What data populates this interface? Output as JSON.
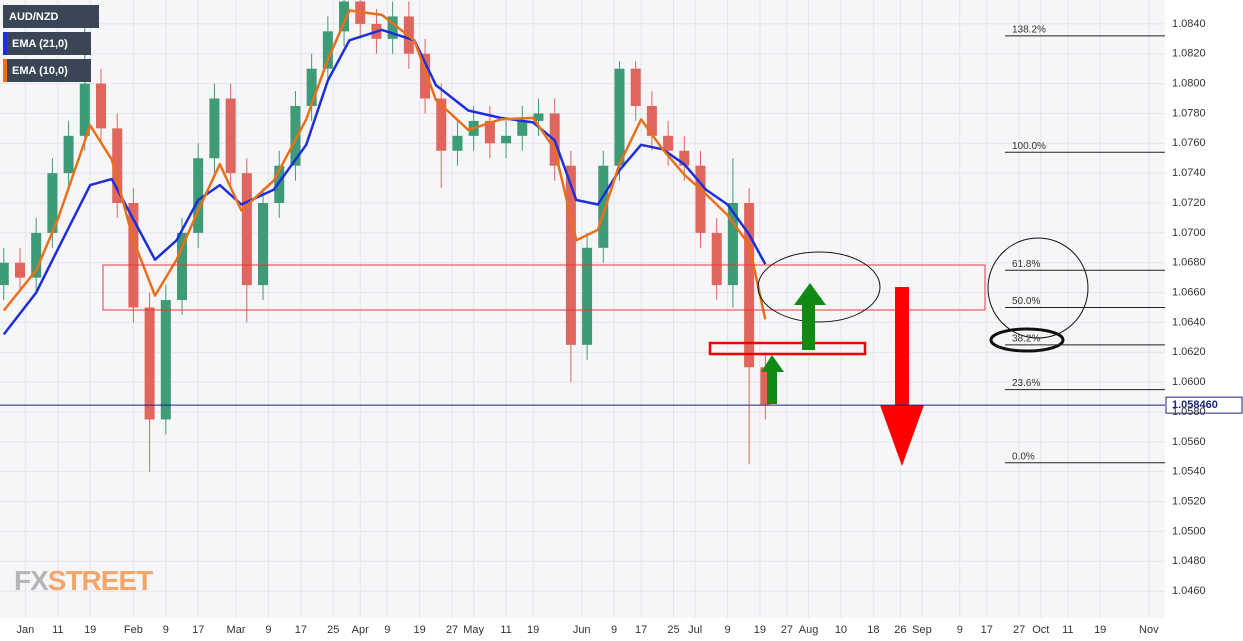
{
  "chart_data": {
    "type": "candlestick",
    "symbol": "AUD/NZD",
    "up_color": "#3d9b75",
    "down_color": "#e0655c",
    "x": [
      0,
      3,
      6,
      9,
      12,
      15,
      18,
      21,
      24,
      27,
      30,
      33,
      36,
      39,
      42,
      45,
      48,
      51,
      54,
      57,
      60,
      63,
      66,
      69,
      72,
      75,
      78,
      81,
      84,
      87,
      90,
      93,
      96,
      99,
      102,
      105,
      108,
      111,
      114,
      117,
      120,
      123,
      126,
      129,
      132,
      135,
      138,
      141
    ],
    "open": [
      1.0665,
      1.068,
      1.067,
      1.07,
      1.074,
      1.0765,
      1.08,
      1.077,
      1.072,
      1.065,
      1.0575,
      1.0655,
      1.07,
      1.075,
      1.079,
      1.074,
      1.0665,
      1.072,
      1.0745,
      1.0785,
      1.081,
      1.0835,
      1.0855,
      1.084,
      1.083,
      1.0845,
      1.082,
      1.079,
      1.0755,
      1.0765,
      1.0775,
      1.076,
      1.0765,
      1.0775,
      1.078,
      1.0745,
      1.0625,
      1.069,
      1.0745,
      1.081,
      1.0785,
      1.0765,
      1.0755,
      1.0745,
      1.07,
      1.0665,
      1.072,
      1.061
    ],
    "high": [
      1.069,
      1.069,
      1.071,
      1.075,
      1.0775,
      1.0845,
      1.081,
      1.078,
      1.073,
      1.066,
      1.0665,
      1.071,
      1.076,
      1.08,
      1.08,
      1.075,
      1.073,
      1.0755,
      1.0795,
      1.082,
      1.0845,
      1.086,
      1.086,
      1.085,
      1.0855,
      1.0855,
      1.083,
      1.08,
      1.0775,
      1.0785,
      1.0785,
      1.0775,
      1.0785,
      1.079,
      1.079,
      1.0755,
      1.07,
      1.0755,
      1.0815,
      1.0815,
      1.0795,
      1.0775,
      1.0765,
      1.0755,
      1.071,
      1.075,
      1.073,
      1.062
    ],
    "low": [
      1.0655,
      1.066,
      1.066,
      1.069,
      1.073,
      1.0755,
      1.076,
      1.071,
      1.064,
      1.054,
      1.0565,
      1.0645,
      1.069,
      1.074,
      1.073,
      1.064,
      1.0655,
      1.071,
      1.0735,
      1.0775,
      1.08,
      1.0825,
      1.083,
      1.082,
      1.082,
      1.081,
      1.078,
      1.073,
      1.0745,
      1.0755,
      1.075,
      1.075,
      1.0755,
      1.0765,
      1.0735,
      1.06,
      1.0615,
      1.068,
      1.0735,
      1.0775,
      1.0755,
      1.0745,
      1.0735,
      1.069,
      1.0655,
      1.065,
      1.0545,
      1.0575
    ],
    "close": [
      1.068,
      1.067,
      1.07,
      1.074,
      1.0765,
      1.08,
      1.077,
      1.072,
      1.065,
      1.0575,
      1.0655,
      1.07,
      1.075,
      1.079,
      1.074,
      1.0665,
      1.072,
      1.0745,
      1.0785,
      1.081,
      1.0835,
      1.0855,
      1.084,
      1.083,
      1.0845,
      1.082,
      1.079,
      1.0755,
      1.0765,
      1.0775,
      1.076,
      1.0765,
      1.0775,
      1.078,
      1.0745,
      1.0625,
      1.069,
      1.0745,
      1.081,
      1.0785,
      1.0765,
      1.0755,
      1.0745,
      1.07,
      1.0665,
      1.072,
      1.061,
      1.0585
    ],
    "lines": [
      {
        "name": "EMA (21,0)",
        "color": "#1d2fd8",
        "x": [
          0,
          6,
          10,
          16,
          20,
          24,
          28,
          32,
          36,
          40,
          44,
          50,
          56,
          60,
          64,
          70,
          76,
          80,
          86,
          92,
          98,
          102,
          106,
          110,
          114,
          118,
          122,
          126,
          130,
          134,
          138,
          141
        ],
        "values": [
          1.0632,
          1.066,
          1.0689,
          1.0732,
          1.0736,
          1.0709,
          1.0682,
          1.0695,
          1.0722,
          1.0732,
          1.0719,
          1.0729,
          1.0759,
          1.0802,
          1.0829,
          1.0836,
          1.0829,
          1.0799,
          1.0782,
          1.0777,
          1.0774,
          1.0762,
          1.0722,
          1.0719,
          1.0742,
          1.0759,
          1.0756,
          1.0746,
          1.0729,
          1.0719,
          1.0699,
          1.0679
        ]
      },
      {
        "name": "EMA (10,0)",
        "color": "#e8701a",
        "x": [
          0,
          6,
          10,
          16,
          20,
          24,
          28,
          32,
          36,
          40,
          44,
          50,
          56,
          60,
          64,
          70,
          76,
          80,
          86,
          92,
          98,
          102,
          106,
          110,
          114,
          118,
          122,
          126,
          130,
          134,
          138,
          141
        ],
        "values": [
          1.0648,
          1.0675,
          1.0709,
          1.0772,
          1.0749,
          1.0695,
          1.0658,
          1.0682,
          1.0715,
          1.0746,
          1.0715,
          1.0735,
          1.0776,
          1.0816,
          1.0849,
          1.0846,
          1.0829,
          1.0789,
          1.0769,
          1.0776,
          1.0777,
          1.0756,
          1.0695,
          1.0702,
          1.0746,
          1.0776,
          1.0756,
          1.0739,
          1.0726,
          1.0712,
          1.0692,
          1.0642
        ]
      }
    ],
    "xlim": [
      -0.7,
      215
    ],
    "xticks": [
      {
        "value": 4,
        "label": "Jan"
      },
      {
        "value": 10,
        "label": "11"
      },
      {
        "value": 16,
        "label": "19"
      },
      {
        "value": 24,
        "label": "Feb"
      },
      {
        "value": 30,
        "label": "9"
      },
      {
        "value": 36,
        "label": "17"
      },
      {
        "value": 43,
        "label": "Mar"
      },
      {
        "value": 49,
        "label": "9"
      },
      {
        "value": 55,
        "label": "17"
      },
      {
        "value": 61,
        "label": "25"
      },
      {
        "value": 66,
        "label": "Apr"
      },
      {
        "value": 71,
        "label": "9"
      },
      {
        "value": 77,
        "label": "19"
      },
      {
        "value": 83,
        "label": "27"
      },
      {
        "value": 87,
        "label": "May"
      },
      {
        "value": 93,
        "label": "11"
      },
      {
        "value": 98,
        "label": "19"
      },
      {
        "value": 107,
        "label": "Jun"
      },
      {
        "value": 113,
        "label": "9"
      },
      {
        "value": 118,
        "label": "17"
      },
      {
        "value": 124,
        "label": "25"
      },
      {
        "value": 128,
        "label": "Jul"
      },
      {
        "value": 134,
        "label": "9"
      },
      {
        "value": 140,
        "label": "19"
      },
      {
        "value": 145,
        "label": "27"
      },
      {
        "value": 149,
        "label": "Aug"
      },
      {
        "value": 155,
        "label": "10"
      },
      {
        "value": 161,
        "label": "18"
      },
      {
        "value": 166,
        "label": "26"
      },
      {
        "value": 170,
        "label": "Sep"
      },
      {
        "value": 177,
        "label": "9"
      },
      {
        "value": 182,
        "label": "17"
      },
      {
        "value": 188,
        "label": "27"
      },
      {
        "value": 192,
        "label": "Oct"
      },
      {
        "value": 197,
        "label": "11"
      },
      {
        "value": 203,
        "label": "19"
      },
      {
        "value": 212,
        "label": "Nov"
      }
    ],
    "ylim": [
      1.0442,
      1.0856
    ],
    "yticks": [
      {
        "value": 1.046,
        "label": "1.0460"
      },
      {
        "value": 1.048,
        "label": "1.0480"
      },
      {
        "value": 1.05,
        "label": "1.0500"
      },
      {
        "value": 1.052,
        "label": "1.0520"
      },
      {
        "value": 1.054,
        "label": "1.0540"
      },
      {
        "value": 1.056,
        "label": "1.0560"
      },
      {
        "value": 1.058,
        "label": "1.0580"
      },
      {
        "value": 1.06,
        "label": "1.0600"
      },
      {
        "value": 1.062,
        "label": "1.0620"
      },
      {
        "value": 1.064,
        "label": "1.0640"
      },
      {
        "value": 1.066,
        "label": "1.0660"
      },
      {
        "value": 1.068,
        "label": "1.0680"
      },
      {
        "value": 1.07,
        "label": "1.0700"
      },
      {
        "value": 1.072,
        "label": "1.0720"
      },
      {
        "value": 1.074,
        "label": "1.0740"
      },
      {
        "value": 1.076,
        "label": "1.0760"
      },
      {
        "value": 1.078,
        "label": "1.0780"
      },
      {
        "value": 1.08,
        "label": "1.0800"
      },
      {
        "value": 1.082,
        "label": "1.0820"
      },
      {
        "value": 1.084,
        "label": "1.0840"
      }
    ],
    "grid": true,
    "price_line": {
      "value": 1.05846,
      "label": "1.058460",
      "color": "#1a237e"
    },
    "fib_levels": [
      {
        "label": "138.2%",
        "value": 1.0832
      },
      {
        "label": "100.0%",
        "value": 1.0754
      },
      {
        "label": "61.8%",
        "value": 1.0675
      },
      {
        "label": "50.0%",
        "value": 1.065
      },
      {
        "label": "38.2%",
        "value": 1.0625
      },
      {
        "label": "23.6%",
        "value": 1.0595
      },
      {
        "label": "0.0%",
        "value": 1.0546
      }
    ],
    "watermark": [
      "FX",
      "STREET"
    ]
  }
}
